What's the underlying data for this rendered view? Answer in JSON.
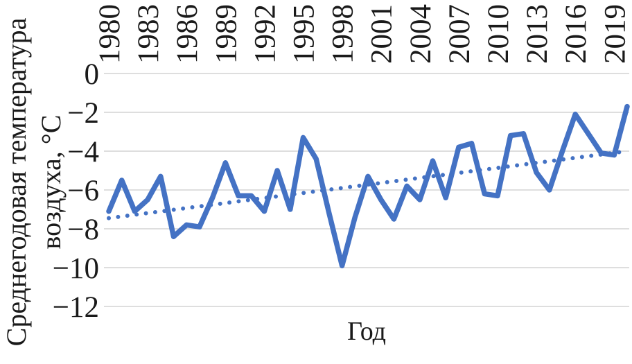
{
  "chart_data": {
    "type": "line",
    "title": "",
    "xlabel": "Год",
    "ylabel": "Среднегодовая температура воздуха, °C",
    "ylabel_lines": [
      "Среднегодовая температура",
      "воздуха, °C"
    ],
    "x_start": 1980,
    "x_end": 2020,
    "x_tick_step": 3,
    "x_tick_labels": [
      "1980",
      "1983",
      "1986",
      "1989",
      "1992",
      "1995",
      "1998",
      "2001",
      "2004",
      "2007",
      "2010",
      "2013",
      "2016",
      "2019"
    ],
    "y_ticks": [
      0,
      -2,
      -4,
      -6,
      -8,
      -10,
      -12
    ],
    "y_tick_labels": [
      "0",
      "−2",
      "−4",
      "−6",
      "−8",
      "−10",
      "−12"
    ],
    "ylim": [
      -12,
      0
    ],
    "grid": true,
    "legend": "none",
    "series": {
      "main_series": {
        "style": "solid",
        "color": "#4472C4",
        "years": [
          1980,
          1981,
          1982,
          1983,
          1984,
          1985,
          1986,
          1987,
          1988,
          1989,
          1990,
          1991,
          1992,
          1993,
          1994,
          1995,
          1996,
          1997,
          1998,
          1999,
          2000,
          2001,
          2002,
          2003,
          2004,
          2005,
          2006,
          2007,
          2008,
          2009,
          2010,
          2011,
          2012,
          2013,
          2014,
          2015,
          2016,
          2017,
          2018,
          2019,
          2020
        ],
        "values": [
          -7.1,
          -5.5,
          -7.1,
          -6.5,
          -5.3,
          -8.4,
          -7.8,
          -7.9,
          -6.4,
          -4.6,
          -6.3,
          -6.3,
          -7.1,
          -5.0,
          -7.0,
          -3.3,
          -4.4,
          -7.2,
          -9.9,
          -7.4,
          -5.3,
          -6.5,
          -7.5,
          -5.8,
          -6.5,
          -4.5,
          -6.4,
          -3.8,
          -3.6,
          -6.2,
          -6.3,
          -3.2,
          -3.1,
          -5.1,
          -6.0,
          -4.0,
          -2.1,
          -3.1,
          -4.1,
          -4.2,
          -1.7
        ]
      },
      "trend_line": {
        "style": "dotted",
        "color": "#4472C4",
        "start": {
          "year": 1980,
          "value": -7.45
        },
        "end": {
          "year": 2020,
          "value": -4.0
        }
      }
    }
  },
  "colors": {
    "line": "#4472C4",
    "grid": "#D9D9D9",
    "text": "#1a1a1a",
    "background": "#FFFFFF"
  }
}
